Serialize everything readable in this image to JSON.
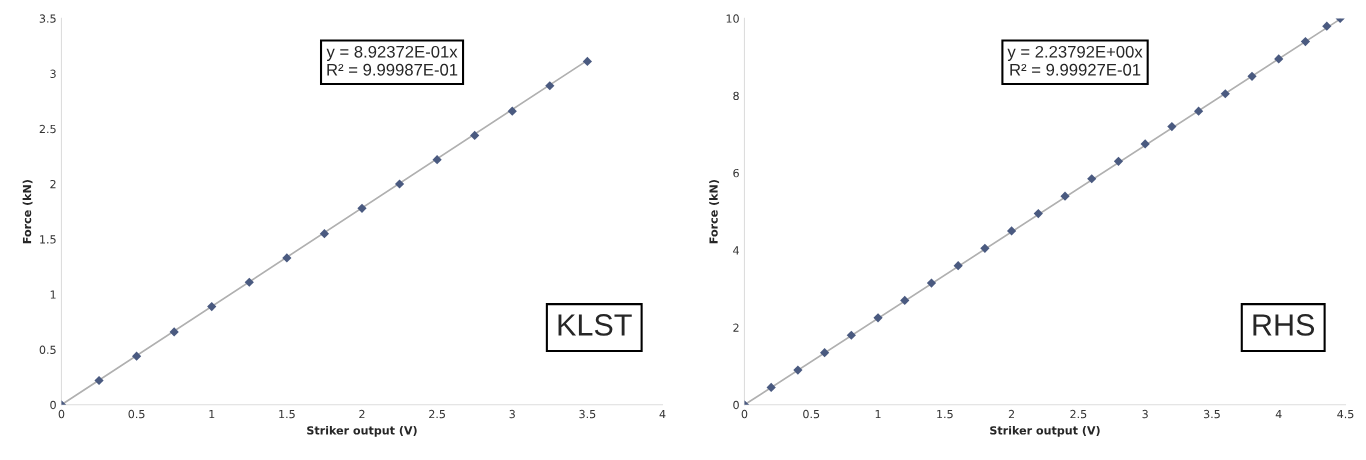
{
  "chart_data": [
    {
      "type": "scatter",
      "xlabel": "Striker output (V)",
      "ylabel": "Force (kN)",
      "xlim": [
        0,
        4
      ],
      "xticks": [
        0,
        0.5,
        1,
        1.5,
        2,
        2.5,
        3,
        3.5,
        4
      ],
      "ylim": [
        0,
        3.5
      ],
      "yticks": [
        0,
        0.5,
        1,
        1.5,
        2,
        2.5,
        3,
        3.5
      ],
      "grid": false,
      "legend": false,
      "annotations": [
        "y = 8.92372E-01x\nR² = 9.99987E-01",
        "KLST"
      ],
      "series": [
        {
          "color": "#4a5a80",
          "marker": "diamond",
          "x": [
            0,
            0.25,
            0.5,
            0.75,
            1,
            1.25,
            1.5,
            1.75,
            2,
            2.25,
            2.5,
            2.75,
            3,
            3.25,
            3.5
          ],
          "values": [
            0,
            0.22,
            0.44,
            0.66,
            0.89,
            1.11,
            1.33,
            1.55,
            1.78,
            2.0,
            2.22,
            2.44,
            2.66,
            2.89,
            3.11
          ]
        },
        {
          "type": "line",
          "color": "#b0b0b0",
          "x": [
            0,
            3.5
          ],
          "values": [
            0,
            3.12
          ]
        }
      ]
    },
    {
      "type": "scatter",
      "xlabel": "Striker output (V)",
      "ylabel": "Force (kN)",
      "xlim": [
        0,
        4.5
      ],
      "xticks": [
        0,
        0.5,
        1,
        1.5,
        2,
        2.5,
        3,
        3.5,
        4,
        4.5
      ],
      "ylim": [
        0,
        10
      ],
      "yticks": [
        0,
        2,
        4,
        6,
        8,
        10
      ],
      "grid": false,
      "legend": false,
      "annotations": [
        "y = 2.23792E+00x\nR² = 9.99927E-01",
        "RHS"
      ],
      "series": [
        {
          "color": "#4a5a80",
          "marker": "diamond",
          "x": [
            0,
            0.2,
            0.4,
            0.6,
            0.8,
            1.0,
            1.2,
            1.4,
            1.6,
            1.8,
            2.0,
            2.2,
            2.4,
            2.6,
            2.8,
            3.0,
            3.2,
            3.4,
            3.6,
            3.8,
            4.0,
            4.2,
            4.36,
            4.46
          ],
          "values": [
            0,
            0.45,
            0.9,
            1.35,
            1.8,
            2.25,
            2.7,
            3.15,
            3.6,
            4.05,
            4.5,
            4.95,
            5.4,
            5.85,
            6.3,
            6.75,
            7.2,
            7.6,
            8.05,
            8.5,
            8.95,
            9.4,
            9.8,
            10.0
          ]
        },
        {
          "type": "line",
          "color": "#b0b0b0",
          "x": [
            0,
            4.46
          ],
          "values": [
            0,
            9.98
          ]
        }
      ]
    }
  ]
}
